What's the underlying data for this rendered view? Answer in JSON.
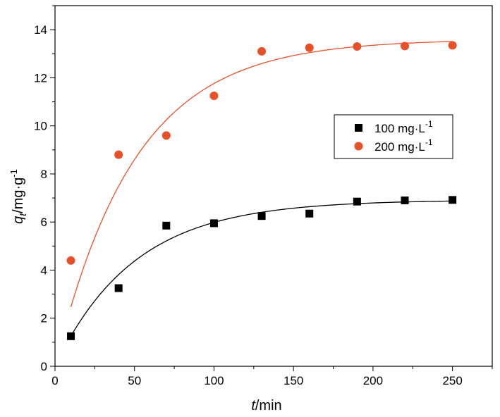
{
  "chart_data": {
    "type": "scatter",
    "title": "",
    "xlabel": {
      "italic": "t",
      "rest": "/min"
    },
    "ylabel": {
      "italic": "q",
      "sub": "t",
      "rest": "/mg·g",
      "sup": "-1"
    },
    "xlim": [
      0,
      275
    ],
    "ylim": [
      0,
      15
    ],
    "xticks": [
      0,
      50,
      100,
      150,
      200,
      250
    ],
    "yticks": [
      0,
      2,
      4,
      6,
      8,
      10,
      12,
      14
    ],
    "xtick_labels": [
      "0",
      "50",
      "100",
      "150",
      "200",
      "250"
    ],
    "ytick_labels": [
      "0",
      "2",
      "4",
      "6",
      "8",
      "10",
      "12",
      "14"
    ],
    "legend_position": "center-right",
    "series": [
      {
        "name": "100 mg·L",
        "name_sup": "-1",
        "marker": "square",
        "color": "#000000",
        "x": [
          10,
          40,
          70,
          100,
          130,
          160,
          190,
          220,
          250
        ],
        "y": [
          1.25,
          3.25,
          5.85,
          5.95,
          6.25,
          6.35,
          6.85,
          6.9,
          6.92
        ],
        "fit": {
          "qe": 6.92,
          "k": 0.02,
          "start": 10,
          "end": 250
        }
      },
      {
        "name": "200 mg·L",
        "name_sup": "-1",
        "marker": "circle",
        "color": "#e8502a",
        "x": [
          10,
          40,
          70,
          100,
          130,
          160,
          190,
          220,
          250
        ],
        "y": [
          4.4,
          8.8,
          9.6,
          11.25,
          13.1,
          13.25,
          13.3,
          13.32,
          13.35
        ],
        "fit": {
          "qe": 13.6,
          "k": 0.02,
          "start": 10,
          "end": 250
        }
      }
    ]
  }
}
